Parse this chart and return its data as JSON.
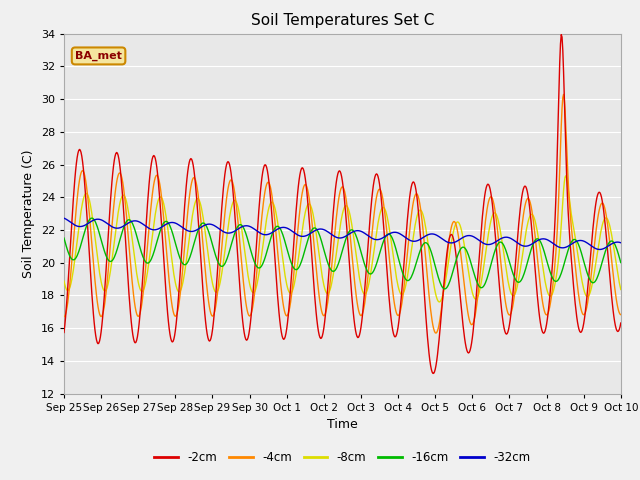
{
  "title": "Soil Temperatures Set C",
  "xlabel": "Time",
  "ylabel": "Soil Temperature (C)",
  "ylim": [
    12,
    34
  ],
  "yticks": [
    12,
    14,
    16,
    18,
    20,
    22,
    24,
    26,
    28,
    30,
    32,
    34
  ],
  "background_color": "#f0f0f0",
  "plot_bg_color": "#e8e8e8",
  "grid_color": "#ffffff",
  "colors": {
    "-2cm": "#dd0000",
    "-4cm": "#ff8800",
    "-8cm": "#dddd00",
    "-16cm": "#00bb00",
    "-32cm": "#0000cc"
  },
  "legend_labels": [
    "-2cm",
    "-4cm",
    "-8cm",
    "-16cm",
    "-32cm"
  ],
  "xtick_labels": [
    "Sep 25",
    "Sep 26",
    "Sep 27",
    "Sep 28",
    "Sep 29",
    "Sep 30",
    "Oct 1",
    "Oct 2",
    "Oct 3",
    "Oct 4",
    "Oct 5",
    "Oct 6",
    "Oct 7",
    "Oct 8",
    "Oct 9",
    "Oct 10"
  ],
  "annotation_text": "BA_met",
  "n_days": 15
}
